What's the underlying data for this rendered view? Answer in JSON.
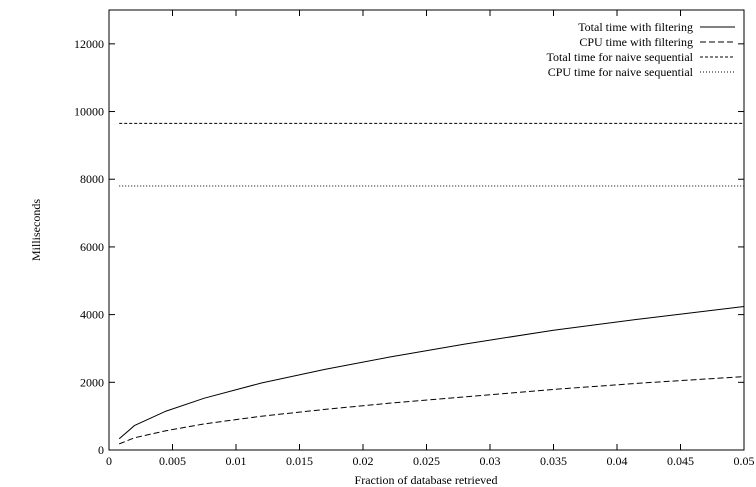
{
  "chart_data": {
    "type": "line",
    "title": "",
    "xlabel": "Fraction of database retrieved",
    "ylabel": "Milliseconds",
    "xlim": [
      0,
      0.05
    ],
    "ylim": [
      0,
      13000
    ],
    "grid": false,
    "legend_position": "top-right",
    "x_ticks": [
      0,
      0.005,
      0.01,
      0.015,
      0.02,
      0.025,
      0.03,
      0.035,
      0.04,
      0.045,
      0.05
    ],
    "x_tick_labels": [
      "0",
      "0.005",
      "0.01",
      "0.015",
      "0.02",
      "0.025",
      "0.03",
      "0.035",
      "0.04",
      "0.045",
      "0.05"
    ],
    "y_ticks": [
      0,
      2000,
      4000,
      6000,
      8000,
      10000,
      12000
    ],
    "y_tick_labels": [
      "0",
      "2000",
      "4000",
      "6000",
      "8000",
      "10000",
      "12000"
    ],
    "series": [
      {
        "name": "Total time with filtering",
        "dash": "solid",
        "x": [
          0.0008,
          0.002,
          0.0045,
          0.0075,
          0.012,
          0.017,
          0.022,
          0.028,
          0.035,
          0.042,
          0.05
        ],
        "y": [
          330,
          720,
          1150,
          1530,
          1980,
          2380,
          2740,
          3130,
          3540,
          3880,
          4240
        ]
      },
      {
        "name": "CPU time with filtering",
        "dash": "dashed",
        "x": [
          0.0008,
          0.002,
          0.0045,
          0.0075,
          0.012,
          0.017,
          0.022,
          0.028,
          0.035,
          0.042,
          0.05
        ],
        "y": [
          180,
          360,
          570,
          770,
          1000,
          1200,
          1380,
          1570,
          1790,
          1980,
          2170
        ]
      },
      {
        "name": "Total time for naive sequential",
        "dash": "short-dashed",
        "x": [
          0.0008,
          0.05
        ],
        "y": [
          9650,
          9650
        ]
      },
      {
        "name": "CPU time for naive sequential",
        "dash": "dotted",
        "x": [
          0.0008,
          0.05
        ],
        "y": [
          7800,
          7800
        ]
      }
    ]
  }
}
